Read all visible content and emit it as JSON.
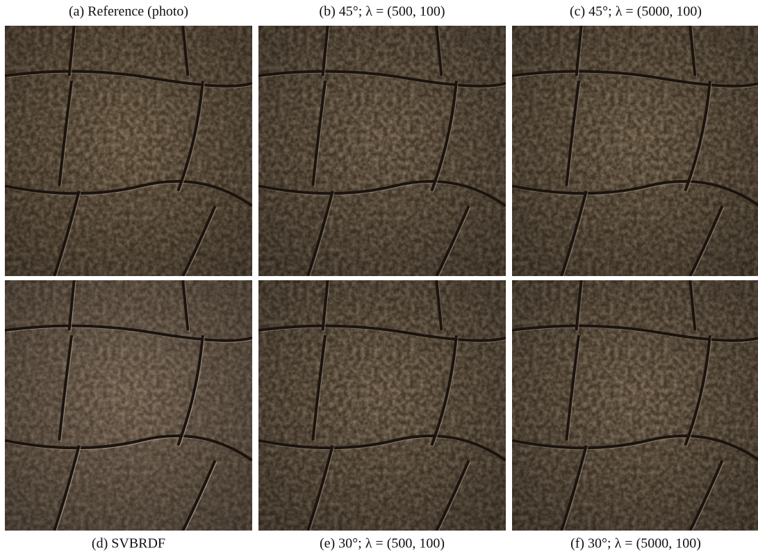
{
  "panels": [
    {
      "caption": "(a) Reference (photo)"
    },
    {
      "caption": "(b) 45°; λ = (500, 100)"
    },
    {
      "caption": "(c) 45°; λ = (5000, 100)"
    },
    {
      "caption": "(d) SVBRDF"
    },
    {
      "caption": "(e) 30°; λ = (500, 100)"
    },
    {
      "caption": "(f) 30°; λ = (5000, 100)"
    }
  ]
}
